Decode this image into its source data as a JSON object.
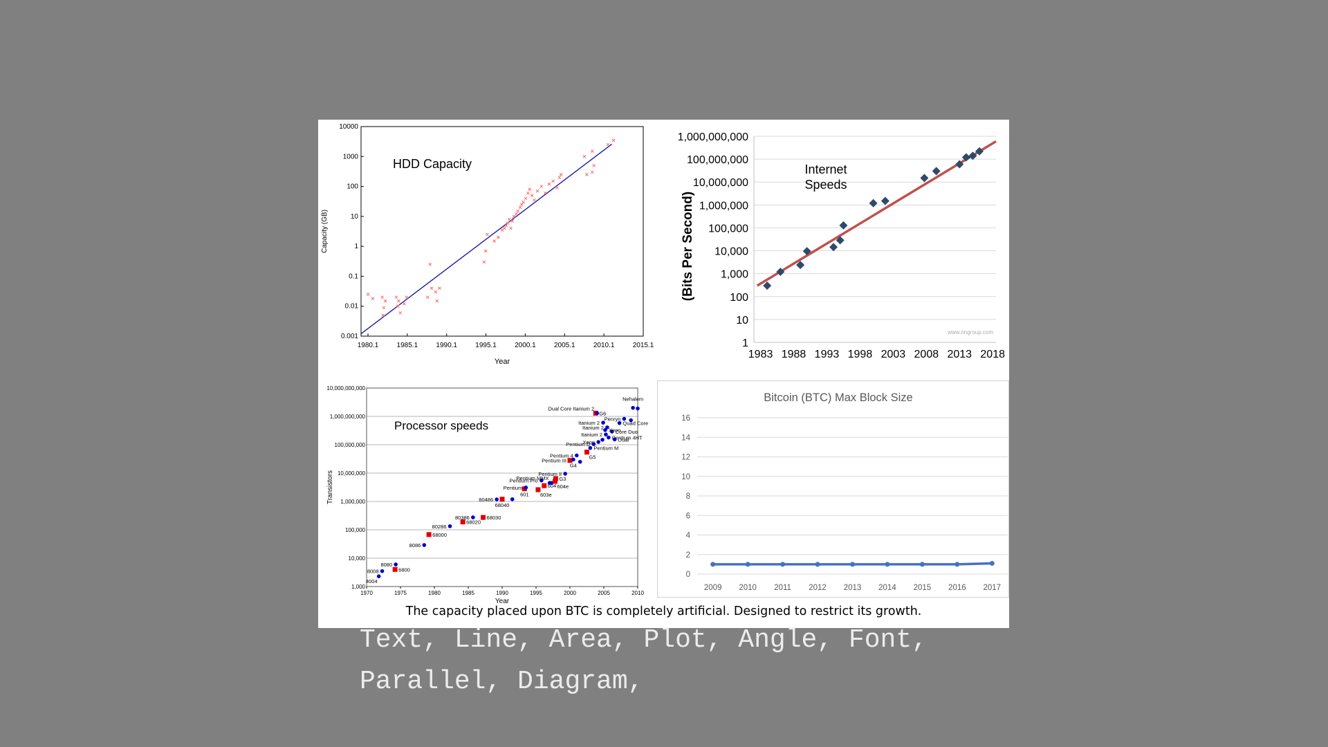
{
  "caption": "The capacity placed upon BTC is completely artificial. Designed to restrict its growth.",
  "keywords": "Text, Line, Area, Plot, Angle, Font, Parallel, Diagram,",
  "colors": {
    "background": "#808080",
    "panel": "#ffffff",
    "hdd_points": "#ff6666",
    "hdd_trend": "#1a1aa6",
    "net_points": "#2e4a6b",
    "net_trend": "#c0504d",
    "proc_red": "#e00000",
    "proc_blue": "#0000cc",
    "btc_line": "#4472c4"
  },
  "chart_data": [
    {
      "id": "hdd",
      "type": "scatter",
      "title": "HDD Capacity",
      "xlabel": "Year",
      "ylabel": "Capacity (GB)",
      "yscale": "log",
      "xlim": [
        1979.5,
        2015.5
      ],
      "ylim": [
        0.001,
        10000
      ],
      "x_ticks": [
        "1980.1",
        "1985.1",
        "1990.1",
        "1995.1",
        "2000.1",
        "2005.1",
        "2010.1",
        "2015.1"
      ],
      "y_ticks": [
        "0.001",
        "0.01",
        "0.1",
        "1",
        "10",
        "100",
        "1000",
        "10000"
      ],
      "trend": {
        "x": [
          1979.5,
          2011.5
        ],
        "y": [
          0.0012,
          2600
        ]
      },
      "points": [
        [
          1980.4,
          0.025
        ],
        [
          1981.0,
          0.018
        ],
        [
          1982.2,
          0.02
        ],
        [
          1982.4,
          0.009
        ],
        [
          1982.3,
          0.005
        ],
        [
          1982.6,
          0.015
        ],
        [
          1984.0,
          0.02
        ],
        [
          1984.2,
          0.01
        ],
        [
          1984.5,
          0.006
        ],
        [
          1984.3,
          0.015
        ],
        [
          1985.0,
          0.012
        ],
        [
          1985.3,
          0.02
        ],
        [
          1988.0,
          0.02
        ],
        [
          1988.3,
          0.25
        ],
        [
          1988.5,
          0.04
        ],
        [
          1989.0,
          0.03
        ],
        [
          1989.2,
          0.015
        ],
        [
          1989.5,
          0.04
        ],
        [
          1995.2,
          0.3
        ],
        [
          1995.4,
          0.7
        ],
        [
          1995.6,
          2.5
        ],
        [
          1996.5,
          1.5
        ],
        [
          1997.0,
          2
        ],
        [
          1997.5,
          3.5
        ],
        [
          1997.8,
          4
        ],
        [
          1998.0,
          5
        ],
        [
          1998.2,
          6
        ],
        [
          1998.4,
          8
        ],
        [
          1998.6,
          4
        ],
        [
          1998.8,
          7
        ],
        [
          1999.0,
          10
        ],
        [
          1999.3,
          12
        ],
        [
          1999.5,
          15
        ],
        [
          1999.8,
          20
        ],
        [
          2000.0,
          25
        ],
        [
          2000.2,
          30
        ],
        [
          2000.5,
          40
        ],
        [
          2000.8,
          60
        ],
        [
          2001.0,
          80
        ],
        [
          2001.3,
          50
        ],
        [
          2001.6,
          35
        ],
        [
          2002.0,
          70
        ],
        [
          2002.5,
          100
        ],
        [
          2003.0,
          60
        ],
        [
          2003.5,
          120
        ],
        [
          2004.0,
          150
        ],
        [
          2004.5,
          90
        ],
        [
          2005.0,
          250
        ],
        [
          2004.8,
          200
        ],
        [
          2008.0,
          1000
        ],
        [
          2008.3,
          250
        ],
        [
          2009.0,
          1500
        ],
        [
          2009.2,
          500
        ],
        [
          2009.0,
          300
        ],
        [
          2011.0,
          2500
        ],
        [
          2011.7,
          3500
        ]
      ]
    },
    {
      "id": "net",
      "type": "scatter",
      "title": "Internet\nSpeeds",
      "ylabel": "(Bits Per Second)",
      "yscale": "log",
      "xlim": [
        1982,
        2018.5
      ],
      "ylim": [
        1,
        1000000000
      ],
      "x_ticks": [
        "1983",
        "1988",
        "1993",
        "1998",
        "2003",
        "2008",
        "2013",
        "2018"
      ],
      "y_ticks": [
        "1",
        "10",
        "100",
        "1,000",
        "10,000",
        "100,000",
        "1,000,000",
        "10,000,000",
        "100,000,000",
        "1,000,000,000"
      ],
      "watermark": "www.nngroup.com",
      "trend": {
        "x": [
          1982.5,
          2018.5
        ],
        "y": [
          300,
          600000000
        ]
      },
      "points": [
        [
          1984,
          300
        ],
        [
          1986,
          1200
        ],
        [
          1989,
          2400
        ],
        [
          1990,
          9600
        ],
        [
          1994,
          14400
        ],
        [
          1995,
          28800
        ],
        [
          1995.5,
          128000
        ],
        [
          2000,
          1200000
        ],
        [
          2001.8,
          1500000
        ],
        [
          2007.7,
          15000000
        ],
        [
          2009.5,
          30000000
        ],
        [
          2013,
          60000000
        ],
        [
          2014,
          120000000
        ],
        [
          2015,
          140000000
        ],
        [
          2016,
          220000000
        ]
      ]
    },
    {
      "id": "proc",
      "type": "scatter",
      "title": "Processor speeds",
      "xlabel": "Year",
      "ylabel": "Transistors",
      "yscale": "log",
      "xlim": [
        1970,
        2010
      ],
      "ylim": [
        1000,
        10000000000
      ],
      "x_ticks": [
        "1970",
        "1975",
        "1980",
        "1985",
        "1990",
        "1995",
        "2000",
        "2005",
        "2010"
      ],
      "y_ticks": [
        "1,000",
        "10,000",
        "100,000",
        "1,000,000",
        "10,000,000",
        "100,000,000",
        "1,000,000,000",
        "10,000,000,000"
      ],
      "points": [
        {
          "x": 1971.8,
          "y": 2300,
          "label": "4004",
          "c": "b",
          "ls": "below-left"
        },
        {
          "x": 1972.3,
          "y": 3500,
          "label": "8008",
          "c": "b",
          "ls": "left"
        },
        {
          "x": 1974.3,
          "y": 6000,
          "label": "8080",
          "c": "b",
          "ls": "left"
        },
        {
          "x": 1974.2,
          "y": 4000,
          "label": "6800",
          "c": "r",
          "ls": "right"
        },
        {
          "x": 1978.5,
          "y": 29000,
          "label": "8086",
          "c": "b",
          "ls": "left"
        },
        {
          "x": 1979.2,
          "y": 68000,
          "label": "68000",
          "c": "r",
          "ls": "right"
        },
        {
          "x": 1982.3,
          "y": 134000,
          "label": "80286",
          "c": "b",
          "ls": "left"
        },
        {
          "x": 1984.2,
          "y": 190000,
          "label": "68020",
          "c": "r",
          "ls": "right"
        },
        {
          "x": 1985.7,
          "y": 275000,
          "label": "80386",
          "c": "b",
          "ls": "left"
        },
        {
          "x": 1987.2,
          "y": 273000,
          "label": "68030",
          "c": "r",
          "ls": "right"
        },
        {
          "x": 1989.2,
          "y": 1180000,
          "label": "80486",
          "c": "b",
          "ls": "left"
        },
        {
          "x": 1990,
          "y": 1200000,
          "label": "68040",
          "c": "r",
          "ls": "below"
        },
        {
          "x": 1991.5,
          "y": 1200000,
          "label": "",
          "c": "b",
          "ls": "none"
        },
        {
          "x": 1993.3,
          "y": 2800000,
          "label": "601",
          "c": "r",
          "ls": "below"
        },
        {
          "x": 1993.5,
          "y": 3100000,
          "label": "Pentium",
          "c": "b",
          "ls": "left"
        },
        {
          "x": 1995.3,
          "y": 2600000,
          "label": "603e",
          "c": "r",
          "ls": "below-right"
        },
        {
          "x": 1995.8,
          "y": 5500000,
          "label": "Pentium Pro",
          "c": "b",
          "ls": "left"
        },
        {
          "x": 1996.2,
          "y": 3600000,
          "label": "604",
          "c": "r",
          "ls": "right"
        },
        {
          "x": 1997,
          "y": 4500000,
          "label": "",
          "c": "b",
          "ls": "none"
        },
        {
          "x": 1997.3,
          "y": 4500000,
          "label": "Pentium MMX",
          "c": "b",
          "ls": "left-up"
        },
        {
          "x": 1997.8,
          "y": 5100000,
          "label": "604e",
          "c": "r",
          "ls": "below-right"
        },
        {
          "x": 1997.9,
          "y": 6400000,
          "label": "G3",
          "c": "r",
          "ls": "right"
        },
        {
          "x": 1999.3,
          "y": 9500000,
          "label": "Pentium II",
          "c": "b",
          "ls": "left"
        },
        {
          "x": 2000,
          "y": 28000000,
          "label": "Pentium III",
          "c": "r",
          "ls": "left"
        },
        {
          "x": 2000.5,
          "y": 30000000,
          "label": "G4",
          "c": "b",
          "ls": "below"
        },
        {
          "x": 2001,
          "y": 42000000,
          "label": "Pentium 4",
          "c": "b",
          "ls": "left"
        },
        {
          "x": 2001.5,
          "y": 25000000,
          "label": "",
          "c": "b",
          "ls": "none"
        },
        {
          "x": 2002.5,
          "y": 55000000,
          "label": "G5",
          "c": "r",
          "ls": "below-right"
        },
        {
          "x": 2003,
          "y": 77000000,
          "label": "Pentium M",
          "c": "b",
          "ls": "right"
        },
        {
          "x": 2003.5,
          "y": 105000000,
          "label": "Pentium D",
          "c": "b",
          "ls": "left"
        },
        {
          "x": 2004.2,
          "y": 125000000,
          "label": "Xeon",
          "c": "b",
          "ls": "left"
        },
        {
          "x": 2004.8,
          "y": 150000000,
          "label": "",
          "c": "b",
          "ls": "none"
        },
        {
          "x": 2005.3,
          "y": 230000000,
          "label": "Itanium 2",
          "c": "b",
          "ls": "left"
        },
        {
          "x": 2005.7,
          "y": 180000000,
          "label": "Pentium 4HT",
          "c": "b",
          "ls": "right"
        },
        {
          "x": 2006.2,
          "y": 291000000,
          "label": "Core Duo",
          "c": "b",
          "ls": "right"
        },
        {
          "x": 2006.6,
          "y": 154000000,
          "label": "Dual",
          "c": "b",
          "ls": "right"
        },
        {
          "x": 2005.5,
          "y": 410000000,
          "label": "Itanium 2",
          "c": "b",
          "ls": "left"
        },
        {
          "x": 2005.2,
          "y": 330000000,
          "label": "Xeon",
          "c": "b",
          "ls": "right"
        },
        {
          "x": 2004.9,
          "y": 600000000,
          "label": "Itanium 2",
          "c": "b",
          "ls": "left"
        },
        {
          "x": 2007.3,
          "y": 582000000,
          "label": "Quad Core",
          "c": "b",
          "ls": "right"
        },
        {
          "x": 2008,
          "y": 820000000,
          "label": "Penryn",
          "c": "b",
          "ls": "left"
        },
        {
          "x": 2009,
          "y": 731000000,
          "label": "",
          "c": "b",
          "ls": "none"
        },
        {
          "x": 2003.8,
          "y": 1300000000,
          "label": "G6",
          "c": "r",
          "ls": "right"
        },
        {
          "x": 2004,
          "y": 1300000000,
          "label": "Dual Core Itanium 2",
          "c": "b",
          "ls": "left-up"
        },
        {
          "x": 2009.3,
          "y": 2000000000,
          "label": "Nehalem",
          "c": "b",
          "ls": "above"
        },
        {
          "x": 2010,
          "y": 1900000000,
          "label": "",
          "c": "b",
          "ls": "none"
        }
      ]
    },
    {
      "id": "btc",
      "type": "line",
      "title": "Bitcoin (BTC) Max Block Size",
      "categories": [
        "2009",
        "2010",
        "2011",
        "2012",
        "2013",
        "2014",
        "2015",
        "2016",
        "2017"
      ],
      "values": [
        1,
        1,
        1,
        1,
        1,
        1,
        1,
        1,
        1.1
      ],
      "ylim": [
        0,
        16
      ],
      "y_ticks": [
        "0",
        "2",
        "4",
        "6",
        "8",
        "10",
        "12",
        "14",
        "16"
      ],
      "grid": true
    }
  ]
}
